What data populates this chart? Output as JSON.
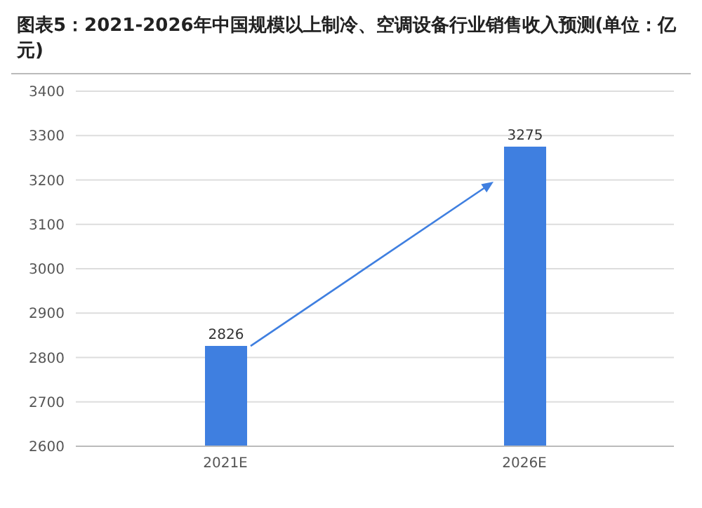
{
  "chart_data": {
    "type": "bar",
    "title": "图表5：2021-2026年中国规模以上制冷、空调设备行业销售收入预测(单位：亿元)",
    "categories": [
      "2021E",
      "2026E"
    ],
    "values": [
      2826,
      3275
    ],
    "color": "#3f7fe0",
    "ylim": [
      2600,
      3400
    ],
    "yticks": [
      2600,
      2700,
      2800,
      2900,
      3000,
      3100,
      3200,
      3300,
      3400
    ],
    "grid": "y",
    "data_labels": true
  }
}
